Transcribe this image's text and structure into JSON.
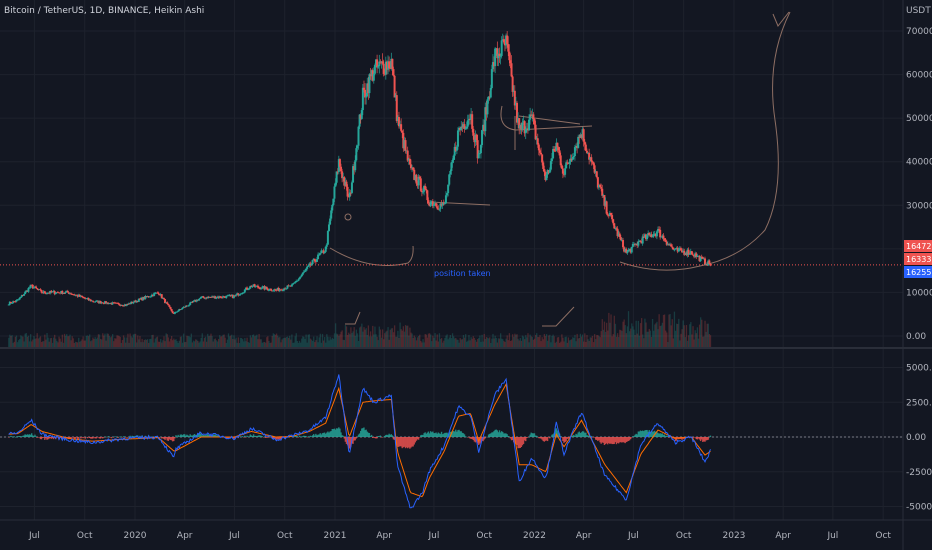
{
  "title": "Bitcoin / TetherUS, 1D, BINANCE, Heikin Ashi",
  "price_axis_unit": "USDT",
  "annotation": "position taken",
  "price_tags": [
    {
      "label": "16472.82",
      "color": "#ef5350"
    },
    {
      "label": "16333.43",
      "color": "#ef5350"
    },
    {
      "label": "16255.89",
      "color": "#2962ff"
    }
  ],
  "colors": {
    "background": "#131722",
    "grid": "#1e222d",
    "up": "#26a69a",
    "down": "#ef5350",
    "macd_line": "#2962ff",
    "signal_line": "#ff6d00",
    "drawing": "#8d6e63",
    "price_line": "#ef5350"
  },
  "chart_data": [
    {
      "type": "candlestick",
      "title": "Bitcoin / TetherUS, 1D, BINANCE, Heikin Ashi",
      "xlabel": "",
      "ylabel": "USDT",
      "ylim": [
        0,
        72000
      ],
      "y_ticks": [
        "0.00",
        "10000.00",
        "20000.00",
        "30000.00",
        "40000.00",
        "50000.00",
        "60000.00",
        "70000.00"
      ],
      "x_ticks": [
        "Jul",
        "Oct",
        "2020",
        "Apr",
        "Jul",
        "Oct",
        "2021",
        "Apr",
        "Jul",
        "Oct",
        "2022",
        "Apr",
        "Jul",
        "Oct",
        "2023",
        "Apr",
        "Jul",
        "Oct"
      ],
      "x_dates": [
        "2019-05-15",
        "2019-06-01",
        "2019-06-25",
        "2019-07-15",
        "2019-09-01",
        "2019-10-15",
        "2019-12-15",
        "2020-02-13",
        "2020-03-12",
        "2020-03-15",
        "2020-05-01",
        "2020-07-01",
        "2020-08-01",
        "2020-09-15",
        "2020-10-15",
        "2020-11-15",
        "2020-12-15",
        "2021-01-08",
        "2021-01-27",
        "2021-02-21",
        "2021-03-13",
        "2021-04-14",
        "2021-04-25",
        "2021-05-19",
        "2021-06-10",
        "2021-06-22",
        "2021-07-20",
        "2021-08-15",
        "2021-09-06",
        "2021-09-21",
        "2021-10-20",
        "2021-11-10",
        "2021-12-04",
        "2021-12-27",
        "2022-01-22",
        "2022-02-10",
        "2022-02-24",
        "2022-03-28",
        "2022-05-10",
        "2022-06-18",
        "2022-07-15",
        "2022-08-15",
        "2022-09-15",
        "2022-10-15",
        "2022-11-09",
        "2022-11-20"
      ],
      "series": [
        {
          "name": "BTCUSDT",
          "values": [
            7500,
            8200,
            11500,
            10000,
            10000,
            8000,
            7100,
            10000,
            5000,
            5500,
            8800,
            9100,
            11500,
            10500,
            11500,
            16000,
            20000,
            40000,
            31000,
            55000,
            61000,
            63000,
            50000,
            38000,
            34000,
            31000,
            29800,
            47000,
            51000,
            41000,
            64000,
            67000,
            47000,
            50000,
            36000,
            44000,
            37500,
            47000,
            30000,
            19000,
            22000,
            24000,
            19500,
            19200,
            17000,
            16400
          ]
        }
      ],
      "volume": {
        "name": "Volume",
        "ylim": [
          0,
          100
        ]
      },
      "current_price": 16333.43
    },
    {
      "type": "line",
      "title": "",
      "ylim": [
        -5600,
        5800
      ],
      "y_ticks": [
        "5000.00",
        "2500.00",
        "0.00",
        "-2500.00",
        "-5000.00"
      ],
      "series": [
        {
          "name": "",
          "kind": "macd",
          "values": [
            200,
            300,
            1200,
            200,
            -200,
            -400,
            -100,
            0,
            -1500,
            -900,
            300,
            -100,
            600,
            -200,
            100,
            500,
            1400,
            4500,
            -1200,
            3500,
            2500,
            3000,
            -2000,
            -5200,
            -4000,
            -2500,
            -600,
            2200,
            1500,
            -1000,
            3000,
            4200,
            -3200,
            -1500,
            -3000,
            1000,
            -1200,
            1800,
            -2800,
            -4500,
            -500,
            1000,
            -400,
            0,
            -1800,
            -900
          ]
        },
        {
          "name": "",
          "kind": "signal",
          "values": [
            200,
            250,
            900,
            400,
            -100,
            -300,
            -150,
            -50,
            -1000,
            -1000,
            0,
            0,
            400,
            0,
            50,
            400,
            1000,
            3500,
            0,
            2500,
            2600,
            2700,
            -1000,
            -4000,
            -4300,
            -3000,
            -1000,
            1500,
            1700,
            -300,
            2300,
            3800,
            -2000,
            -2000,
            -2500,
            200,
            -700,
            1200,
            -2000,
            -4000,
            -1200,
            500,
            -100,
            0,
            -1300,
            -1000
          ]
        }
      ],
      "reference_line": 0
    }
  ]
}
